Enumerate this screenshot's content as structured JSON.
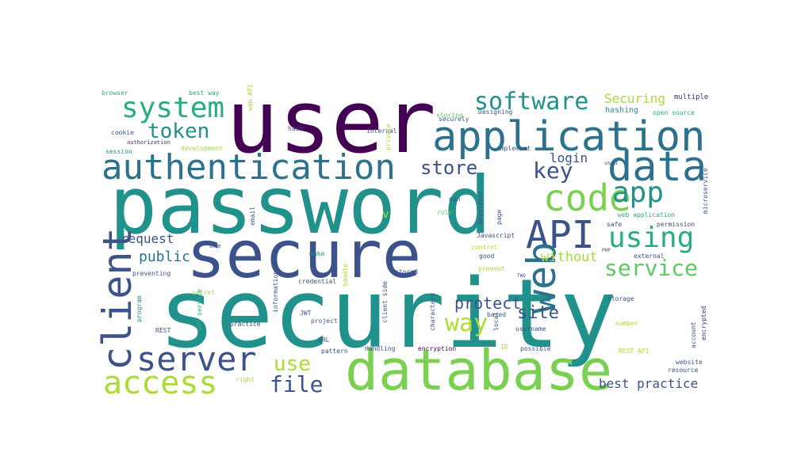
{
  "wordcloud": {
    "background": "#ffffff",
    "palette": {
      "purple": "#440154",
      "indigo": "#472d7b",
      "navy": "#3b528b",
      "blue": "#2c728e",
      "teal": "#21918c",
      "green": "#27ad81",
      "lime": "#5ec962",
      "yellowgreen": "#aadc32",
      "yellow": "#fde725"
    },
    "words": [
      {
        "text": "security",
        "color": "#21918c"
      },
      {
        "text": "password",
        "color": "#21918c"
      },
      {
        "text": "user",
        "color": "#440154"
      },
      {
        "text": "secure",
        "color": "#3b528b"
      },
      {
        "text": "database",
        "color": "#7ad151"
      },
      {
        "text": "application",
        "color": "#2c728e"
      },
      {
        "text": "authentication",
        "color": "#2c728e"
      },
      {
        "text": "data",
        "color": "#2c728e"
      },
      {
        "text": "system",
        "color": "#27ad81"
      },
      {
        "text": "software",
        "color": "#21918c"
      },
      {
        "text": "code",
        "color": "#7ad151"
      },
      {
        "text": "app",
        "color": "#21918c"
      },
      {
        "text": "API",
        "color": "#3b528b"
      },
      {
        "text": "using",
        "color": "#27ad81"
      },
      {
        "text": "server",
        "color": "#3b528b"
      },
      {
        "text": "access",
        "color": "#aadc32"
      },
      {
        "text": "client",
        "color": "#3b528b"
      },
      {
        "text": "web",
        "color": "#2c728e"
      },
      {
        "text": "token",
        "color": "#21918c"
      },
      {
        "text": "key",
        "color": "#3b528b"
      },
      {
        "text": "store",
        "color": "#3b528b"
      },
      {
        "text": "service",
        "color": "#5ec962"
      },
      {
        "text": "way",
        "color": "#aadc32"
      },
      {
        "text": "file",
        "color": "#3b528b"
      },
      {
        "text": "use",
        "color": "#aadc32"
      },
      {
        "text": "site",
        "color": "#3b528b"
      },
      {
        "text": "protect",
        "color": "#3b528b"
      },
      {
        "text": "best practice",
        "color": "#3b528b"
      },
      {
        "text": "request",
        "color": "#3b528b"
      },
      {
        "text": "public",
        "color": "#2c728e"
      },
      {
        "text": "login",
        "color": "#3b528b"
      },
      {
        "text": "without",
        "color": "#aadc32"
      },
      {
        "text": "Securing",
        "color": "#aadc32"
      },
      {
        "text": "hashing",
        "color": "#21918c"
      },
      {
        "text": "securely",
        "color": "#3b528b"
      },
      {
        "text": "multiple",
        "color": "#472d7b"
      },
      {
        "text": "open source",
        "color": "#27ad81"
      },
      {
        "text": "browser",
        "color": "#27ad81"
      },
      {
        "text": "best way",
        "color": "#27ad81"
      },
      {
        "text": "web API",
        "color": "#aadc32"
      },
      {
        "text": "cookie",
        "color": "#3b528b"
      },
      {
        "text": "authorization",
        "color": "#472d7b"
      },
      {
        "text": "session",
        "color": "#21918c"
      },
      {
        "text": "development",
        "color": "#aadc32"
      },
      {
        "text": "hash",
        "color": "#3b528b"
      },
      {
        "text": "internal",
        "color": "#3b528b"
      },
      {
        "text": "private",
        "color": "#aadc32"
      },
      {
        "text": "storing",
        "color": "#5ec962"
      },
      {
        "text": "Designing",
        "color": "#3b528b"
      },
      {
        "text": "implement",
        "color": "#3b528b"
      },
      {
        "text": "used",
        "color": "#3b528b"
      },
      {
        "text": "email",
        "color": "#3b528b"
      },
      {
        "text": "v",
        "color": "#aadc32"
      },
      {
        "text": "non",
        "color": "#3b528b"
      },
      {
        "text": "role",
        "color": "#5ec962"
      },
      {
        "text": "developer",
        "color": "#3b528b"
      },
      {
        "text": "page",
        "color": "#3b528b"
      },
      {
        "text": "microservice",
        "color": "#3b528b"
      },
      {
        "text": "Javascript",
        "color": "#3b528b"
      },
      {
        "text": "safe",
        "color": "#3b528b"
      },
      {
        "text": "web application",
        "color": "#27ad81"
      },
      {
        "text": "permission",
        "color": "#3b528b"
      },
      {
        "text": "one",
        "color": "#3b528b"
      },
      {
        "text": "make",
        "color": "#21918c"
      },
      {
        "text": "control",
        "color": "#aadc32"
      },
      {
        "text": "good",
        "color": "#3b528b"
      },
      {
        "text": "PHP",
        "color": "#3b528b"
      },
      {
        "text": "external",
        "color": "#3b528b"
      },
      {
        "text": "preventing",
        "color": "#3b528b"
      },
      {
        "text": "stored",
        "color": "#3b528b"
      },
      {
        "text": "prevent",
        "color": "#aadc32"
      },
      {
        "text": "TWO",
        "color": "#3b528b"
      },
      {
        "text": "secret",
        "color": "#aadc32"
      },
      {
        "text": "web service",
        "color": "#27ad81"
      },
      {
        "text": "program",
        "color": "#21918c"
      },
      {
        "text": "information",
        "color": "#3b528b"
      },
      {
        "text": "credential",
        "color": "#3b528b"
      },
      {
        "text": "handle",
        "color": "#aadc32"
      },
      {
        "text": "client side",
        "color": "#3b528b"
      },
      {
        "text": "characters",
        "color": "#3b528b"
      },
      {
        "text": "storage",
        "color": "#3b528b"
      },
      {
        "text": "JWT",
        "color": "#3b528b"
      },
      {
        "text": "project",
        "color": "#3b528b"
      },
      {
        "text": "based",
        "color": "#3b528b"
      },
      {
        "text": "local",
        "color": "#3b528b"
      },
      {
        "text": "ID",
        "color": "#aadc32"
      },
      {
        "text": "username",
        "color": "#3b528b"
      },
      {
        "text": "account",
        "color": "#3b528b"
      },
      {
        "text": "encrypted",
        "color": "#472d7b"
      },
      {
        "text": "number",
        "color": "#aadc32"
      },
      {
        "text": "REST",
        "color": "#3b528b"
      },
      {
        "text": "practice",
        "color": "#3b528b"
      },
      {
        "text": "URL",
        "color": "#3b528b"
      },
      {
        "text": "pattern",
        "color": "#3b528b"
      },
      {
        "text": "Handling",
        "color": "#3b528b"
      },
      {
        "text": "encryption",
        "color": "#440154"
      },
      {
        "text": "possible",
        "color": "#3b528b"
      },
      {
        "text": "REST API",
        "color": "#aadc32"
      },
      {
        "text": "website",
        "color": "#3b528b"
      },
      {
        "text": "resource",
        "color": "#3b528b"
      },
      {
        "text": "right",
        "color": "#aadc32"
      }
    ]
  }
}
